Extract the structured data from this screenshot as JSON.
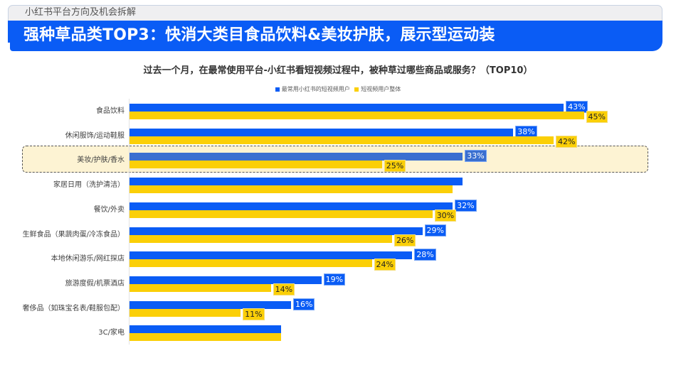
{
  "header": {
    "subtitle": "小红书平台方向及机会拆解",
    "title": "强种草品类TOP3：快消大类目食品饮料&美妆护肤，展示型运动装"
  },
  "colors": {
    "header_blue": "#0a5cf5",
    "series_blue": "#0a5cf5",
    "series_yellow": "#fbcf07",
    "highlight_bg": "#fdf3d3"
  },
  "chart": {
    "title": "过去一个月，在最常使用平台-小红书看短视频过程中，被种草过哪些商品或服务？（TOP10）",
    "legend": [
      {
        "label": "最常用小红书的短视频用户",
        "color": "#0a5cf5"
      },
      {
        "label": "短视频用户整体",
        "color": "#fbcf07"
      }
    ]
  },
  "chart_data": {
    "type": "bar",
    "orientation": "horizontal",
    "title": "过去一个月，在最常使用平台-小红书看短视频过程中，被种草过哪些商品或服务？（TOP10）",
    "xlabel": "",
    "ylabel": "",
    "xlim": [
      0,
      50
    ],
    "grid": false,
    "legend_position": "top",
    "categories": [
      "食品饮料",
      "休闲服饰/运动鞋服",
      "美妆/护肤/香水",
      "家居日用（洗护清洁）",
      "餐饮/外卖",
      "生鲜食品（果蔬肉蛋/冷冻食品）",
      "本地休闲游乐/网红探店",
      "旅游度假/机票酒店",
      "奢侈品（如珠宝名表/鞋服包配）",
      "3C/家电"
    ],
    "series": [
      {
        "name": "最常用小红书的短视频用户",
        "color": "#0a5cf5",
        "values": [
          43,
          38,
          33,
          33,
          32,
          29,
          28,
          19,
          16,
          15
        ],
        "labels": [
          "43%",
          "38%",
          "33%",
          "",
          "32%",
          "29%",
          "28%",
          "19%",
          "16%",
          ""
        ]
      },
      {
        "name": "短视频用户整体",
        "color": "#fbcf07",
        "values": [
          45,
          42,
          25,
          32,
          30,
          26,
          24,
          14,
          11,
          15
        ],
        "labels": [
          "45%",
          "42%",
          "25%",
          "",
          "30%",
          "26%",
          "24%",
          "14%",
          "11%",
          ""
        ]
      }
    ],
    "annotations": [
      "highlight box around 美妆/护肤/香水 row"
    ]
  }
}
